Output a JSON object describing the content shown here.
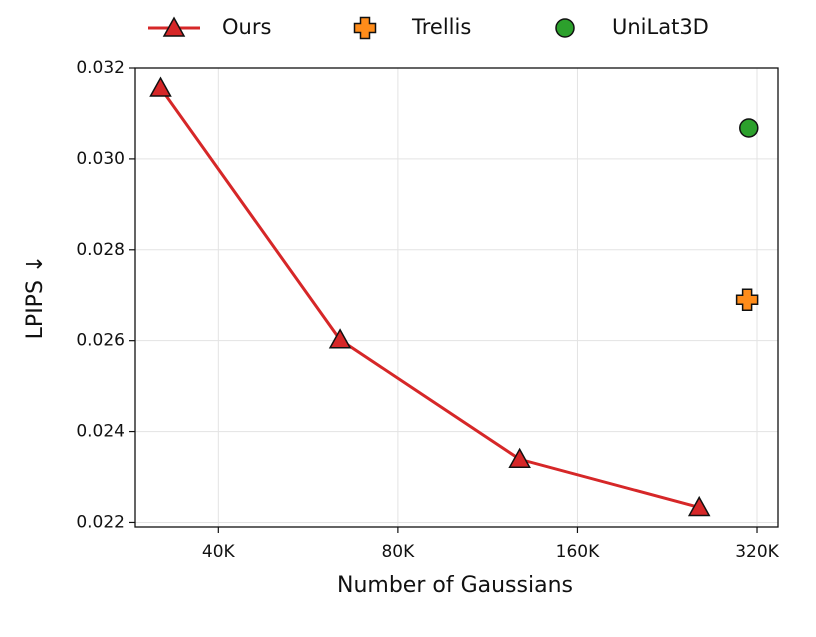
{
  "chart_data": {
    "type": "line",
    "xlabel": "Number of Gaussians",
    "ylabel": "LPIPS ↓",
    "xscale": "log",
    "xscale_base": 2,
    "grid": true,
    "legend": "top",
    "xlim": [
      29000,
      347000
    ],
    "ylim": [
      0.0219,
      0.032
    ],
    "xticks": [
      {
        "value": 40000,
        "label": "40K"
      },
      {
        "value": 80000,
        "label": "80K"
      },
      {
        "value": 160000,
        "label": "160K"
      },
      {
        "value": 320000,
        "label": "320K"
      }
    ],
    "yticks": [
      0.022,
      0.024,
      0.026,
      0.028,
      {
        "value": 0.03,
        "label": "0.030"
      },
      0.032
    ],
    "series": [
      {
        "name": "Ours",
        "color": "#d62728",
        "line": true,
        "marker": "triangle",
        "x": [
          32000,
          64000,
          128000,
          256000
        ],
        "values": [
          0.03156,
          0.02602,
          0.02339,
          0.02233
        ]
      },
      {
        "name": "Trellis",
        "color": "#ff8c1a",
        "line": false,
        "marker": "x",
        "x": [
          308000
        ],
        "values": [
          0.0269
        ]
      },
      {
        "name": "UniLat3D",
        "color": "#2ca02c",
        "line": false,
        "marker": "circle",
        "x": [
          310000
        ],
        "values": [
          0.03068
        ]
      }
    ]
  }
}
